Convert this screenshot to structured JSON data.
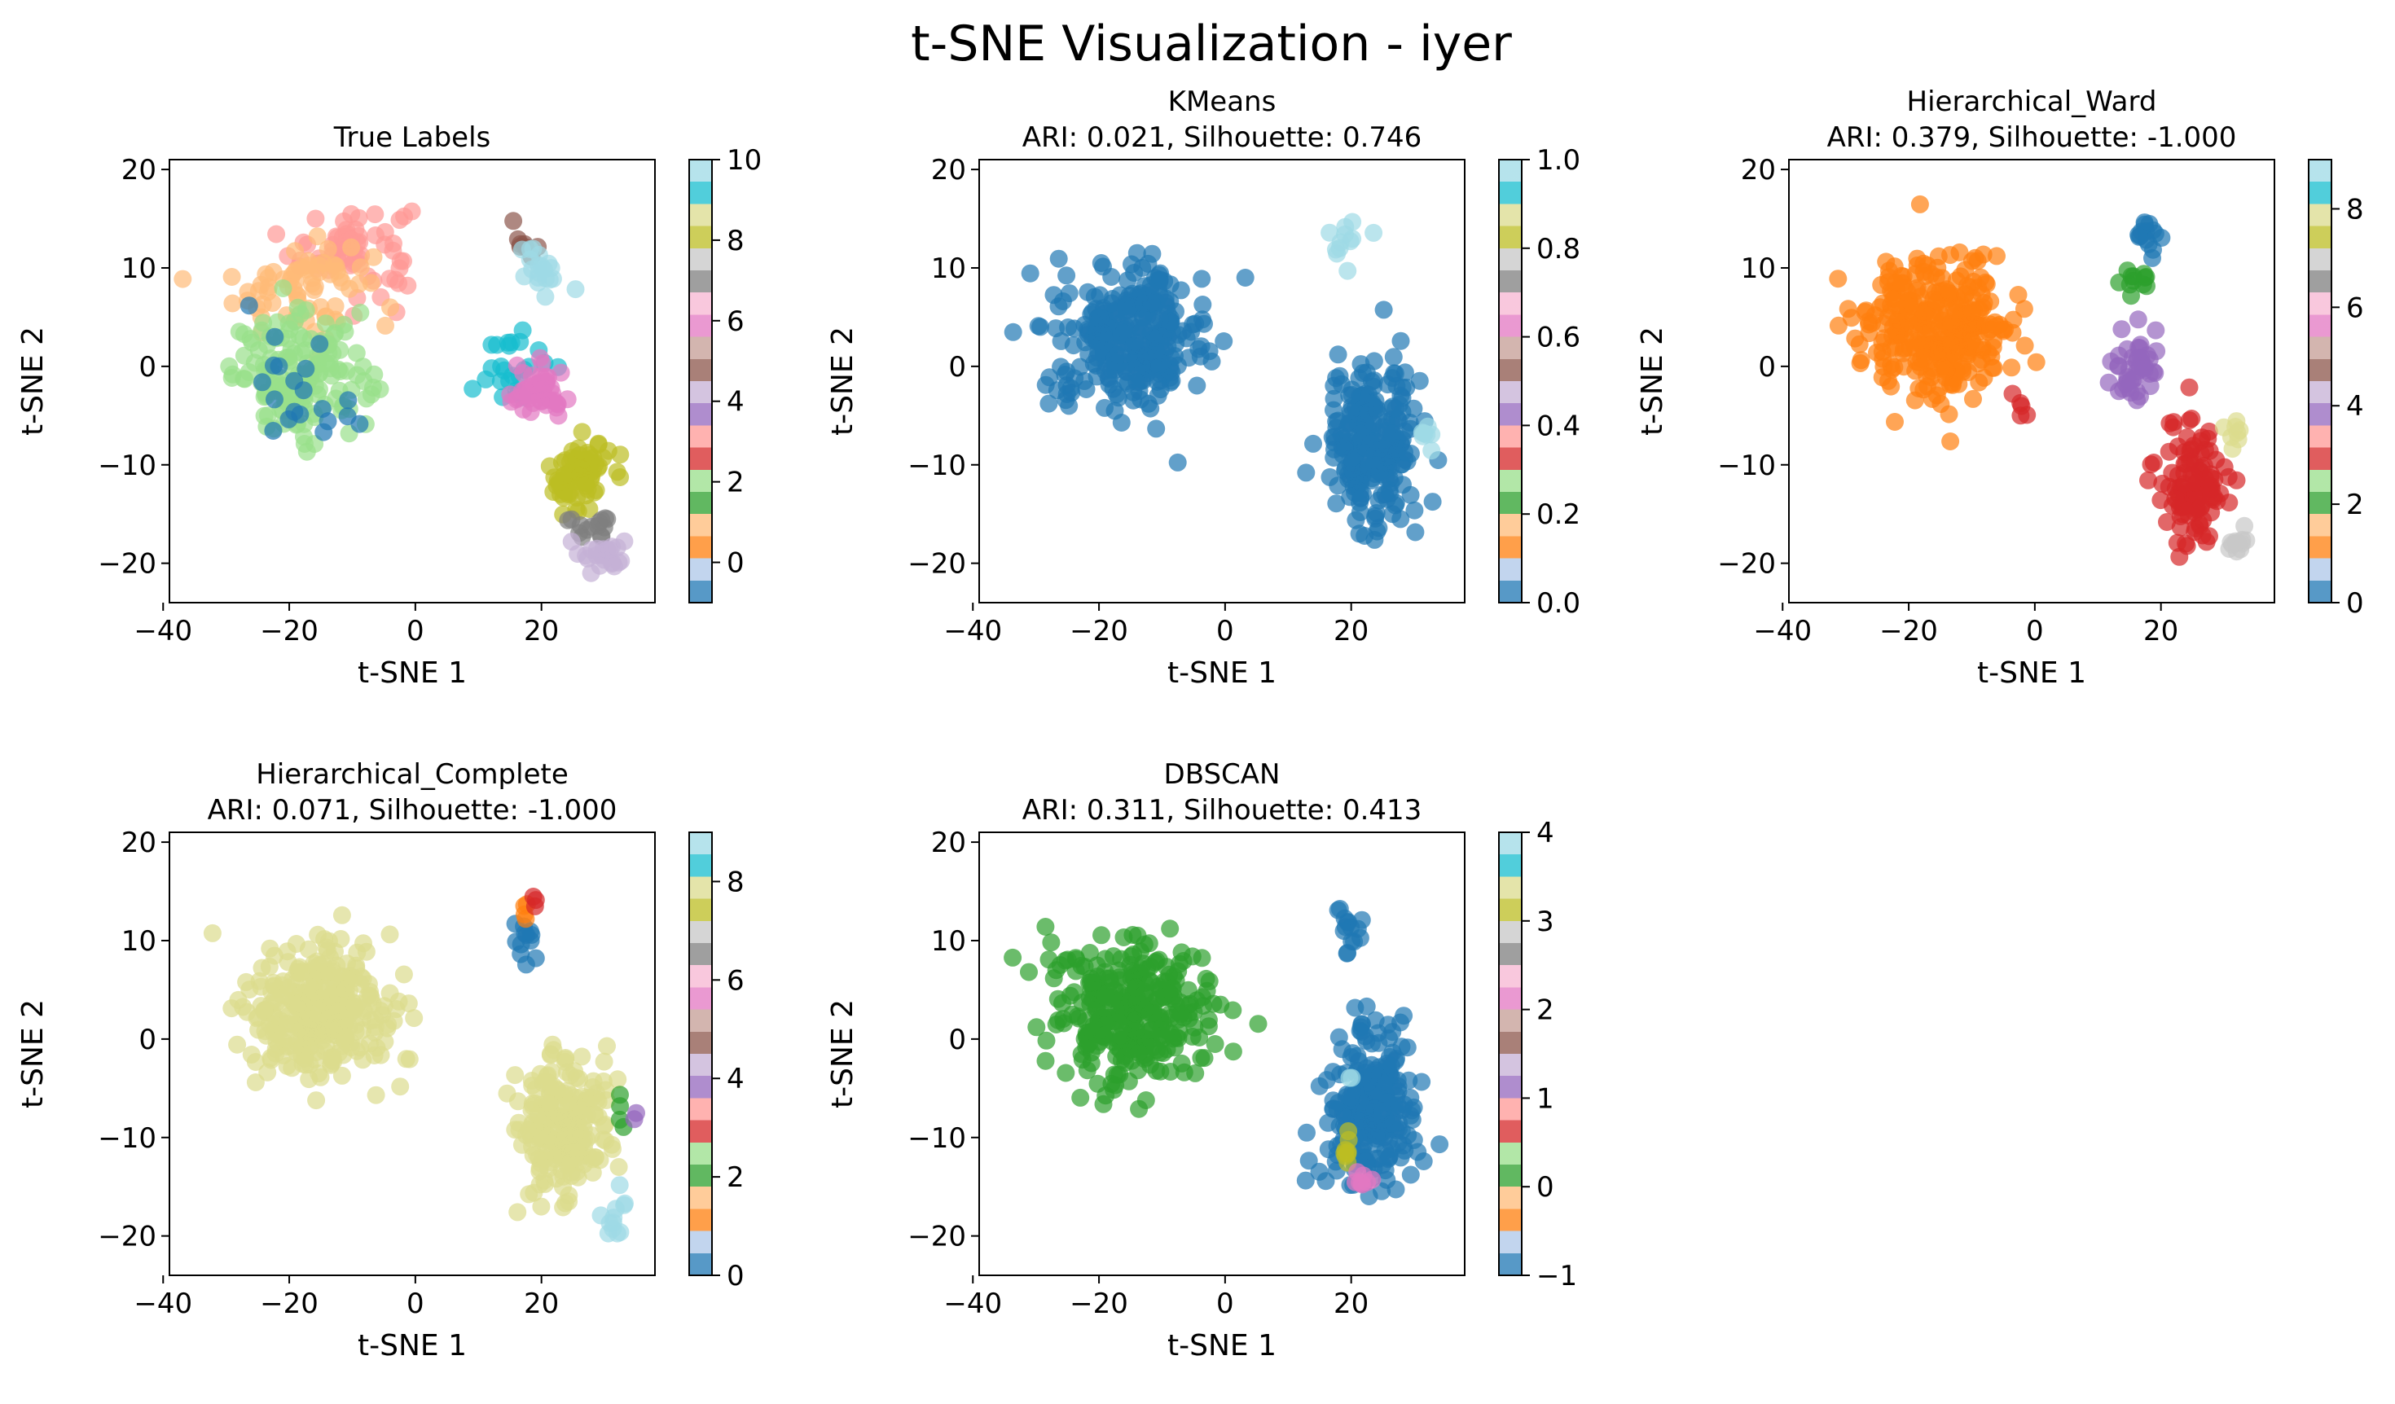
{
  "figure": {
    "title": "t-SNE Visualization - iyer"
  },
  "chart_data": [
    {
      "type": "scatter",
      "title": "True Labels",
      "subtitle": "",
      "xlabel": "t-SNE 1",
      "ylabel": "t-SNE 2",
      "xlim": [
        -39,
        38
      ],
      "ylim": [
        -24,
        21
      ],
      "xticks": [
        "−40",
        "−20",
        "0",
        "20"
      ],
      "yticks": [
        "20",
        "10",
        "0",
        "−10",
        "−20"
      ],
      "colorbar": {
        "cmap": "tab20",
        "range": [
          -1,
          10
        ],
        "ticks": [
          "10",
          "8",
          "6",
          "4",
          "2",
          "0"
        ]
      },
      "clusters": [
        {
          "label": 3,
          "color": "#ff9896",
          "cx": -10,
          "cy": 12,
          "sx": 8,
          "sy": 4,
          "n": 70
        },
        {
          "label": 1,
          "color": "#ffbb78",
          "cx": -18,
          "cy": 8,
          "sx": 9,
          "sy": 4,
          "n": 70
        },
        {
          "label": 2,
          "color": "#98df8a",
          "cx": -18,
          "cy": -1,
          "sx": 9,
          "sy": 5,
          "n": 150
        },
        {
          "label": 0,
          "color": "#1f77b4",
          "cx": -16,
          "cy": -2,
          "sx": 9,
          "sy": 5,
          "n": 20
        },
        {
          "label": 5,
          "color": "#8c564b",
          "cx": 17,
          "cy": 13,
          "sx": 2,
          "sy": 1.5,
          "n": 8
        },
        {
          "label": 10,
          "color": "#9edae5",
          "cx": 20,
          "cy": 10,
          "sx": 3,
          "sy": 2,
          "n": 20
        },
        {
          "label": 9,
          "color": "#17becf",
          "cx": 16,
          "cy": 0,
          "sx": 4,
          "sy": 3,
          "n": 25
        },
        {
          "label": 6,
          "color": "#e377c2",
          "cx": 19,
          "cy": -3,
          "sx": 4,
          "sy": 2.5,
          "n": 45
        },
        {
          "label": 8,
          "color": "#bcbd22",
          "cx": 26,
          "cy": -11,
          "sx": 4,
          "sy": 3,
          "n": 80
        },
        {
          "label": 7,
          "color": "#7f7f7f",
          "cx": 28,
          "cy": -16,
          "sx": 3,
          "sy": 1.5,
          "n": 15
        },
        {
          "label": 4,
          "color": "#c5b0d5",
          "cx": 30,
          "cy": -19,
          "sx": 3,
          "sy": 1.5,
          "n": 25
        }
      ]
    },
    {
      "type": "scatter",
      "title": "KMeans",
      "subtitle": "ARI: 0.021, Silhouette: 0.746",
      "xlabel": "t-SNE 1",
      "ylabel": "t-SNE 2",
      "xlim": [
        -39,
        38
      ],
      "ylim": [
        -24,
        21
      ],
      "xticks": [
        "−40",
        "−20",
        "0",
        "20"
      ],
      "yticks": [
        "20",
        "10",
        "0",
        "−10",
        "−20"
      ],
      "colorbar": {
        "cmap": "tab20",
        "range": [
          0,
          1
        ],
        "ticks": [
          "1.0",
          "0.8",
          "0.6",
          "0.4",
          "0.2",
          "0.0"
        ]
      },
      "clusters": [
        {
          "label": 0,
          "color": "#1f77b4",
          "cx": -15,
          "cy": 3,
          "sx": 10,
          "sy": 6,
          "n": 300
        },
        {
          "label": 0,
          "color": "#1f77b4",
          "cx": 23,
          "cy": -8,
          "sx": 6,
          "sy": 7,
          "n": 250
        },
        {
          "label": 1,
          "color": "#9edae5",
          "cx": 19,
          "cy": 13,
          "sx": 2,
          "sy": 1.5,
          "n": 12
        },
        {
          "label": 1,
          "color": "#9edae5",
          "cx": 32,
          "cy": -7,
          "sx": 1.5,
          "sy": 1.5,
          "n": 8
        }
      ]
    },
    {
      "type": "scatter",
      "title": "Hierarchical_Ward",
      "subtitle": "ARI: 0.379, Silhouette: -1.000",
      "xlabel": "t-SNE 1",
      "ylabel": "t-SNE 2",
      "xlim": [
        -39,
        38
      ],
      "ylim": [
        -24,
        21
      ],
      "xticks": [
        "−40",
        "−20",
        "0",
        "20"
      ],
      "yticks": [
        "20",
        "10",
        "0",
        "−10",
        "−20"
      ],
      "colorbar": {
        "cmap": "tab20",
        "range": [
          0,
          9
        ],
        "ticks": [
          "8",
          "6",
          "4",
          "2",
          "0"
        ]
      },
      "clusters": [
        {
          "label": 1,
          "color": "#ff7f0e",
          "cx": -15,
          "cy": 4,
          "sx": 10,
          "sy": 6,
          "n": 320
        },
        {
          "label": 0,
          "color": "#1f77b4",
          "cx": 18,
          "cy": 13,
          "sx": 2,
          "sy": 1.5,
          "n": 15
        },
        {
          "label": 2,
          "color": "#2ca02c",
          "cx": 16,
          "cy": 9,
          "sx": 2,
          "sy": 1.5,
          "n": 12
        },
        {
          "label": 4,
          "color": "#9467bd",
          "cx": 16,
          "cy": 0,
          "sx": 3,
          "sy": 2.5,
          "n": 45
        },
        {
          "label": 3,
          "color": "#d62728",
          "cx": 25,
          "cy": -12,
          "sx": 4,
          "sy": 5,
          "n": 110
        },
        {
          "label": 3,
          "color": "#d62728",
          "cx": -2,
          "cy": -4,
          "sx": 1,
          "sy": 1,
          "n": 5
        },
        {
          "label": 7,
          "color": "#c7c7c7",
          "cx": 32,
          "cy": -18,
          "sx": 1.5,
          "sy": 1.5,
          "n": 12
        },
        {
          "label": 8,
          "color": "#dbdb8d",
          "cx": 32,
          "cy": -7,
          "sx": 1.5,
          "sy": 1.5,
          "n": 8
        }
      ]
    },
    {
      "type": "scatter",
      "title": "Hierarchical_Complete",
      "subtitle": "ARI: 0.071, Silhouette: -1.000",
      "xlabel": "t-SNE 1",
      "ylabel": "t-SNE 2",
      "xlim": [
        -39,
        38
      ],
      "ylim": [
        -24,
        21
      ],
      "xticks": [
        "−40",
        "−20",
        "0",
        "20"
      ],
      "yticks": [
        "20",
        "10",
        "0",
        "−10",
        "−20"
      ],
      "colorbar": {
        "cmap": "tab20",
        "range": [
          0,
          9
        ],
        "ticks": [
          "8",
          "6",
          "4",
          "2",
          "0"
        ]
      },
      "clusters": [
        {
          "label": 8,
          "color": "#dbdb8d",
          "cx": -15,
          "cy": 3,
          "sx": 10,
          "sy": 6,
          "n": 320
        },
        {
          "label": 8,
          "color": "#dbdb8d",
          "cx": 23,
          "cy": -9,
          "sx": 6,
          "sy": 6,
          "n": 240
        },
        {
          "label": 0,
          "color": "#1f77b4",
          "cx": 18,
          "cy": 10,
          "sx": 1.5,
          "sy": 2,
          "n": 12
        },
        {
          "label": 1,
          "color": "#ff7f0e",
          "cx": 17,
          "cy": 13,
          "sx": 1,
          "sy": 1,
          "n": 4
        },
        {
          "label": 3,
          "color": "#d62728",
          "cx": 19,
          "cy": 14,
          "sx": 0.8,
          "sy": 0.8,
          "n": 3
        },
        {
          "label": 2,
          "color": "#2ca02c",
          "cx": 32,
          "cy": -7,
          "sx": 1,
          "sy": 1.5,
          "n": 4
        },
        {
          "label": 4,
          "color": "#9467bd",
          "cx": 35,
          "cy": -8,
          "sx": 0.5,
          "sy": 0.5,
          "n": 2
        },
        {
          "label": 9,
          "color": "#9edae5",
          "cx": 32,
          "cy": -18,
          "sx": 1.5,
          "sy": 2,
          "n": 12
        }
      ]
    },
    {
      "type": "scatter",
      "title": "DBSCAN",
      "subtitle": "ARI: 0.311, Silhouette: 0.413",
      "xlabel": "t-SNE 1",
      "ylabel": "t-SNE 2",
      "xlim": [
        -39,
        38
      ],
      "ylim": [
        -24,
        21
      ],
      "xticks": [
        "−40",
        "−20",
        "0",
        "20"
      ],
      "yticks": [
        "20",
        "10",
        "0",
        "−10",
        "−20"
      ],
      "colorbar": {
        "cmap": "tab20",
        "range": [
          -1,
          4
        ],
        "ticks": [
          "4",
          "3",
          "2",
          "1",
          "0",
          "−1"
        ]
      },
      "clusters": [
        {
          "label": 0,
          "color": "#2ca02c",
          "cx": -15,
          "cy": 3,
          "sx": 10,
          "sy": 6,
          "n": 320
        },
        {
          "label": -1,
          "color": "#1f77b4",
          "cx": 23,
          "cy": -7,
          "sx": 6,
          "sy": 7,
          "n": 240
        },
        {
          "label": -1,
          "color": "#1f77b4",
          "cx": 20,
          "cy": 11,
          "sx": 2,
          "sy": 2,
          "n": 15
        },
        {
          "label": 3,
          "color": "#bcbd22",
          "cx": 19,
          "cy": -11,
          "sx": 1,
          "sy": 1.5,
          "n": 8
        },
        {
          "label": 2,
          "color": "#e377c2",
          "cx": 22,
          "cy": -14,
          "sx": 1.2,
          "sy": 1.2,
          "n": 8
        },
        {
          "label": 4,
          "color": "#9edae5",
          "cx": 20,
          "cy": -4,
          "sx": 0.6,
          "sy": 0.6,
          "n": 2
        }
      ]
    }
  ]
}
